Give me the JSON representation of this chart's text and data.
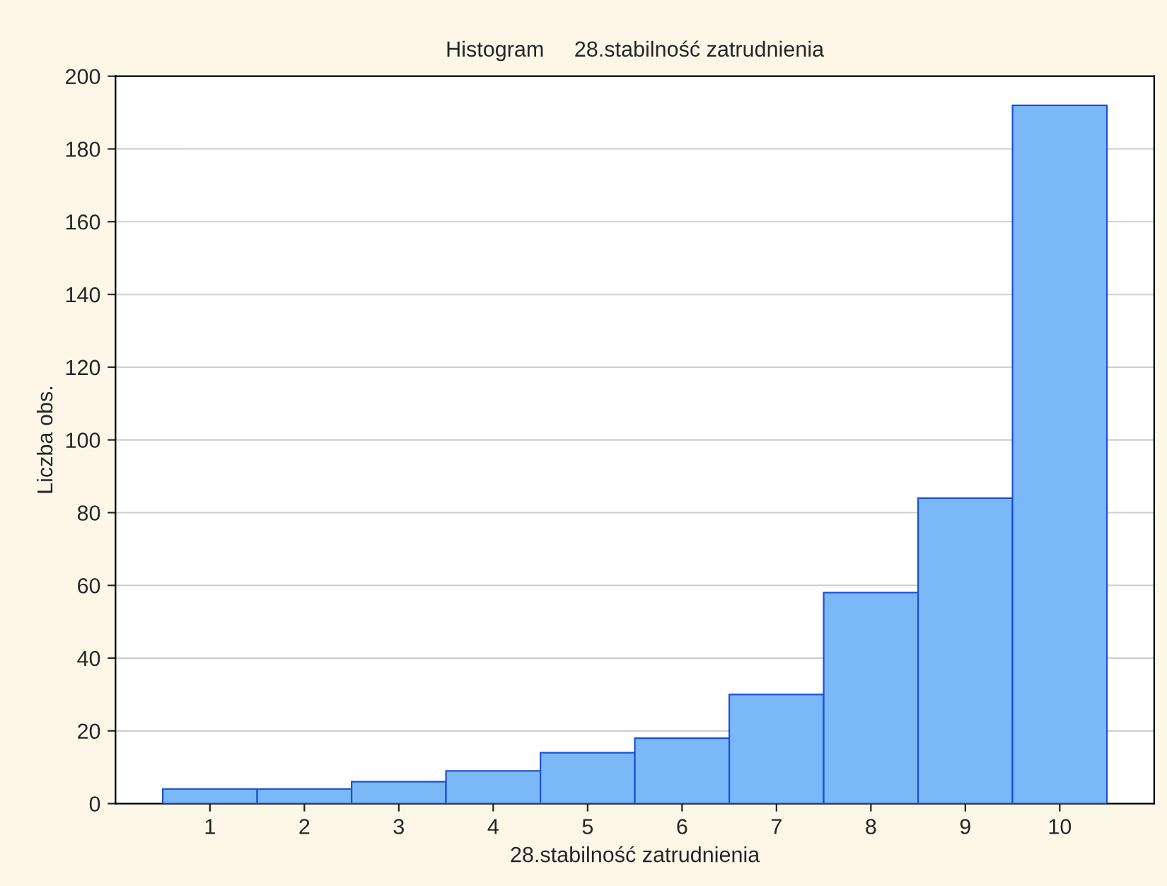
{
  "chart_data": {
    "type": "bar",
    "title": "Histogram     28.stabilność zatrudnienia",
    "xlabel": "28.stabilność zatrudnienia",
    "ylabel": "Liczba obs.",
    "categories": [
      "1",
      "2",
      "3",
      "4",
      "5",
      "6",
      "7",
      "8",
      "9",
      "10"
    ],
    "values": [
      4,
      4,
      6,
      9,
      14,
      18,
      30,
      58,
      84,
      192
    ],
    "color": "#7ab8f8",
    "ylim": [
      0,
      200
    ],
    "yticks": [
      0,
      20,
      40,
      60,
      80,
      100,
      120,
      140,
      160,
      180,
      200
    ],
    "grid": "y",
    "legend": false
  }
}
